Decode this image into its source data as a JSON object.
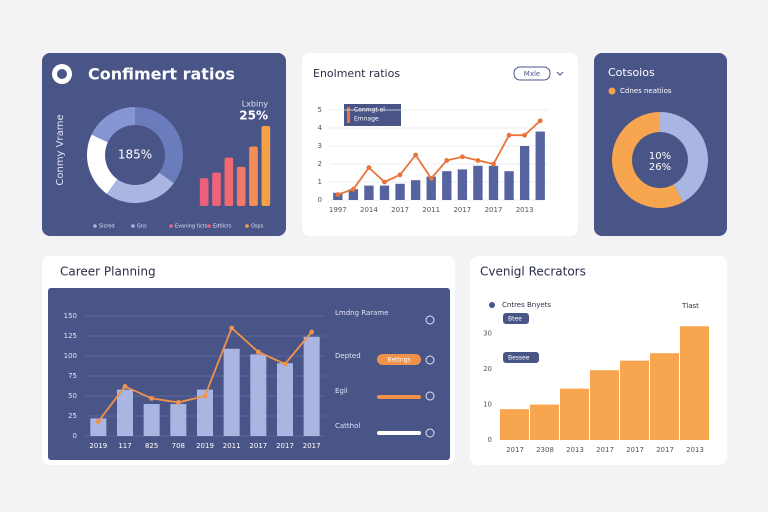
{
  "chart_data": [
    {
      "type": "donut",
      "title": "Confimert ratios",
      "side_label": "Conmy Vrame",
      "center_label": "185%",
      "annotation": "Lxbiny",
      "annotation_value": "25%",
      "values": [
        35,
        25,
        22,
        18
      ],
      "colors": [
        "#6b7cbc",
        "#aab6e2",
        "#ffffff",
        "#8596d2"
      ],
      "legend": [
        "Sicred",
        "Gns",
        "Evoning ticts",
        "Edtilcrs",
        "Osps"
      ],
      "legend_colors": [
        "#aab6e2",
        "#aab6e2",
        "#f0637a",
        "#f0637a",
        "#f5a04a"
      ]
    },
    {
      "type": "bar",
      "values": [
        3,
        3.6,
        5.2,
        4.2,
        6.4,
        8.6
      ],
      "colors": [
        "#ee5f7f",
        "#ee6379",
        "#f06a70",
        "#f2796a",
        "#f48e57",
        "#f6a046"
      ]
    },
    {
      "type": "combo",
      "title": "Enolment ratios",
      "dropdown": "Mxle",
      "legend_box": [
        "Conmgt ol",
        "Emnage"
      ],
      "categories": [
        "1997",
        null,
        "2014",
        null,
        "2017",
        null,
        "2011",
        null,
        "2017",
        null,
        "2017",
        null,
        "2013",
        null
      ],
      "series": [
        {
          "color": "#55649f",
          "values": [
            0.4,
            0.6,
            0.8,
            0.8,
            0.9,
            1.1,
            1.3,
            1.6,
            1.7,
            1.9,
            1.9,
            1.6,
            3.0,
            3.8
          ]
        },
        {
          "color": "#e8743b",
          "values": [
            0.3,
            0.6,
            1.8,
            1.0,
            1.4,
            2.5,
            1.2,
            2.2,
            2.4,
            2.2,
            2.0,
            3.6,
            3.6,
            4.4
          ]
        }
      ],
      "ylim": [
        0,
        5
      ],
      "yticks": [
        0,
        1,
        2,
        3,
        4,
        5
      ],
      "grid": true
    },
    {
      "type": "donut",
      "title": "Cotsoios",
      "legend": [
        "Cdnes neatiios"
      ],
      "legend_colors": [
        "#f5a04a"
      ],
      "center_label": "10%",
      "center_sublabel": "26%",
      "values": [
        42,
        58
      ],
      "colors": [
        "#aab6e2",
        "#f7a54f"
      ]
    },
    {
      "type": "combo",
      "title": "Career Planning",
      "controls": [
        "Lmdng Rarame",
        "Depted",
        "Egil",
        "Catthol"
      ],
      "toggle_label": "Bettngs",
      "categories": [
        "2019",
        "117",
        "825",
        "708",
        "2019",
        "2011",
        "2017",
        "2017",
        "2017"
      ],
      "series": [
        {
          "color": "#aab6e2",
          "values": [
            22,
            58,
            40,
            40,
            58,
            109,
            102,
            91,
            124
          ]
        },
        {
          "color": "#f0924a",
          "values": [
            18,
            62,
            47,
            42,
            50,
            135,
            105,
            90,
            130
          ]
        }
      ],
      "ylim": [
        0,
        150
      ],
      "yticks": [
        0,
        25,
        50,
        75,
        100,
        125,
        150
      ],
      "grid": true
    },
    {
      "type": "bar",
      "title": "Cvenigl Recrators",
      "legend": [
        "Cntres Bnyets"
      ],
      "tags": [
        "Btee",
        "Bessee"
      ],
      "annotation": "Tlast",
      "categories": [
        "2017",
        "2308",
        "2013",
        "2017",
        "2017",
        "2017",
        "2013"
      ],
      "values": [
        8.7,
        10,
        14.5,
        19.7,
        22.4,
        24.5,
        32.1
      ],
      "color": "#f7a54f",
      "ylim": [
        0,
        35
      ],
      "yticks": [
        0,
        10,
        20,
        30
      ],
      "grid": false
    }
  ]
}
